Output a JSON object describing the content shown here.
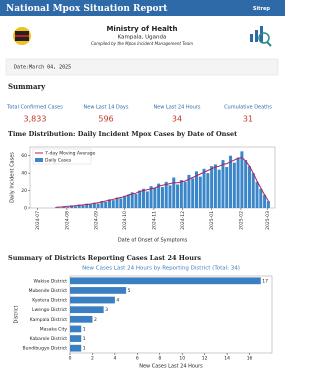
{
  "header": {
    "title": "National Mpox Situation Report",
    "link": "Sitrep",
    "ministry": "Ministry of Health",
    "location": "Kampala, Uganda",
    "compiled": "Compiled by the Mpox Incident Management Team"
  },
  "date": "Date:March 04, 2025",
  "summary": {
    "heading": "Summary",
    "stats": [
      {
        "label": "Total Confirmed Cases",
        "value": "3,833"
      },
      {
        "label": "New Last 14 Days",
        "value": "596"
      },
      {
        "label": "New Last 24 Hours",
        "value": "34"
      },
      {
        "label": "Cumulative Deaths",
        "value": "31"
      }
    ]
  },
  "sections": [
    "Time Distribution: Daily Incident Mpox Cases by Date of Onset",
    "Summary of Districts Reporting Cases Last 24 Hours"
  ],
  "chart_data": [
    {
      "type": "combo",
      "xlabel": "Date of Onset of Symptoms",
      "ylabel": "Daily Incident Cases",
      "x": [
        20,
        24,
        28,
        32,
        36,
        40,
        44,
        48,
        52,
        56,
        60,
        64,
        68,
        72,
        76,
        80,
        84,
        88,
        92,
        96,
        100,
        104,
        108,
        112,
        116,
        120,
        124,
        128,
        132,
        136,
        140,
        144,
        148,
        152,
        156,
        160,
        164,
        168,
        172,
        176,
        180,
        184,
        188,
        192,
        196,
        200,
        204,
        208,
        212,
        216,
        220,
        224,
        228,
        232,
        236,
        240,
        244
      ],
      "series": [
        {
          "name": "7-day Moving Average",
          "color": "#b0205a",
          "type": "line",
          "values": [
            1,
            1,
            1.5,
            2,
            2,
            2.5,
            3,
            3.5,
            4,
            4.5,
            5.5,
            6,
            7,
            8,
            9,
            10,
            11,
            12,
            13,
            15,
            16,
            17,
            19,
            20,
            21,
            22,
            23,
            25,
            26,
            27,
            28,
            29,
            29,
            30,
            31,
            33,
            35,
            37,
            39,
            41,
            43,
            45,
            47,
            48,
            50,
            51,
            53,
            55,
            57,
            58,
            54,
            48,
            40,
            31,
            23,
            15,
            8
          ]
        },
        {
          "name": "Daily Cases",
          "color": "#3a86c8",
          "type": "bar",
          "values": [
            1,
            0,
            2,
            1,
            3,
            2,
            4,
            3,
            5,
            4,
            6,
            5,
            8,
            7,
            10,
            9,
            12,
            11,
            14,
            15,
            18,
            16,
            20,
            22,
            19,
            25,
            23,
            28,
            24,
            30,
            26,
            35,
            27,
            32,
            30,
            38,
            34,
            42,
            36,
            45,
            40,
            48,
            50,
            44,
            55,
            47,
            60,
            52,
            58,
            65,
            55,
            48,
            40,
            30,
            22,
            15,
            8
          ]
        }
      ],
      "xlim": [
        -8,
        251
      ],
      "ylim": [
        0,
        70
      ],
      "yticks": [
        0,
        20,
        40,
        60
      ],
      "xticks": [
        {
          "value": 0,
          "label": "2024-07"
        },
        {
          "value": 31,
          "label": "2024-08"
        },
        {
          "value": 62,
          "label": "2024-09"
        },
        {
          "value": 92,
          "label": "2024-10"
        },
        {
          "value": 123,
          "label": "2024-11"
        },
        {
          "value": 153,
          "label": "2024-12"
        },
        {
          "value": 184,
          "label": "2025-01"
        },
        {
          "value": 215,
          "label": "2025-02"
        },
        {
          "value": 243,
          "label": "2025-03"
        }
      ],
      "legend": "upper left"
    },
    {
      "type": "barh",
      "title": "New Cases Last 24 Hours by Reporting District (Total: 34)",
      "xlabel": "New Cases Last 24 Hours",
      "ylabel": "District",
      "categories": [
        "Wakiso District",
        "Mubende District",
        "Kyotera District",
        "Lwengo District",
        "Kampala District",
        "Masaka City",
        "Kabarole District",
        "Bundibugyo District"
      ],
      "values": [
        17,
        5,
        4,
        3,
        2,
        1,
        1,
        1
      ],
      "color": "#3a7fc1",
      "data_labels": true,
      "xlim": [
        0,
        18
      ],
      "xticks": [
        0,
        2,
        4,
        6,
        8,
        10,
        12,
        14,
        16
      ]
    }
  ]
}
